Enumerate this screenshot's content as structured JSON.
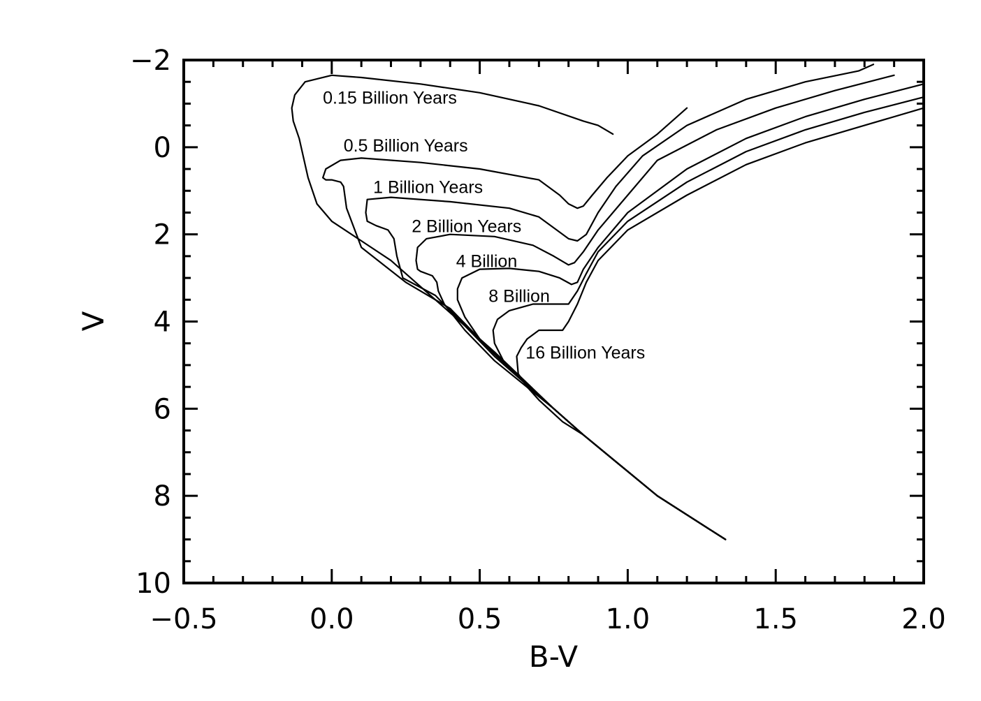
{
  "chart_data": {
    "type": "line",
    "xlabel": "B-V",
    "ylabel": "V",
    "xlim": [
      -0.5,
      2.0
    ],
    "ylim": [
      10,
      -2
    ],
    "y_inverted": true,
    "xticks": [
      "−0.5",
      "0.0",
      "0.5",
      "1.0",
      "1.5",
      "2.0"
    ],
    "yticks": [
      "−2",
      "0",
      "2",
      "4",
      "6",
      "8",
      "10"
    ],
    "grid": false,
    "series": [
      {
        "name": "0.15 Billion Years",
        "label_at": [
          -0.03,
          -1.0
        ],
        "x": [
          1.33,
          1.1,
          0.85,
          0.75,
          0.55,
          0.35,
          0.2,
          0.1,
          0.0,
          -0.05,
          -0.08,
          -0.11,
          -0.13,
          -0.135,
          -0.125,
          -0.09,
          0.0,
          0.1,
          0.3,
          0.5,
          0.7,
          0.85,
          0.9,
          0.95
        ],
        "y": [
          9.0,
          8.0,
          6.6,
          6.0,
          4.7,
          3.5,
          2.6,
          2.15,
          1.7,
          1.3,
          0.7,
          -0.2,
          -0.6,
          -0.9,
          -1.2,
          -1.5,
          -1.65,
          -1.6,
          -1.45,
          -1.25,
          -0.95,
          -0.6,
          -0.5,
          -0.3
        ]
      },
      {
        "name": "0.5 Billion Years",
        "label_at": [
          0.04,
          0.1
        ],
        "x": [
          1.33,
          1.1,
          0.85,
          0.75,
          0.55,
          0.4,
          0.25,
          0.1,
          0.05,
          0.04,
          0.03,
          0.0,
          -0.02,
          -0.03,
          -0.02,
          0.03,
          0.1,
          0.3,
          0.5,
          0.7,
          0.77,
          0.8,
          0.83,
          0.85,
          0.88,
          0.93,
          1.0,
          1.1,
          1.2
        ],
        "y": [
          9.0,
          8.0,
          6.6,
          6.0,
          4.75,
          3.7,
          3.1,
          2.3,
          1.4,
          0.9,
          0.8,
          0.75,
          0.75,
          0.7,
          0.5,
          0.3,
          0.25,
          0.35,
          0.5,
          0.75,
          1.1,
          1.3,
          1.4,
          1.35,
          1.1,
          0.7,
          0.2,
          -0.3,
          -0.9
        ]
      },
      {
        "name": "1 Billion Years",
        "label_at": [
          0.14,
          1.05
        ],
        "x": [
          1.33,
          1.1,
          0.85,
          0.75,
          0.55,
          0.45,
          0.35,
          0.24,
          0.22,
          0.21,
          0.19,
          0.15,
          0.12,
          0.115,
          0.12,
          0.2,
          0.4,
          0.6,
          0.7,
          0.76,
          0.8,
          0.83,
          0.86,
          0.9,
          0.96,
          1.05,
          1.2,
          1.4,
          1.6,
          1.78,
          1.83
        ],
        "y": [
          9.0,
          8.0,
          6.6,
          6.0,
          4.8,
          4.1,
          3.4,
          3.0,
          2.5,
          2.1,
          1.9,
          1.8,
          1.7,
          1.5,
          1.2,
          1.15,
          1.25,
          1.4,
          1.6,
          1.9,
          2.1,
          2.15,
          2.0,
          1.5,
          0.9,
          0.2,
          -0.5,
          -1.1,
          -1.5,
          -1.75,
          -1.9
        ]
      },
      {
        "name": "2 Billion Years",
        "label_at": [
          0.27,
          1.95
        ],
        "x": [
          1.33,
          1.1,
          0.85,
          0.75,
          0.55,
          0.45,
          0.38,
          0.36,
          0.355,
          0.34,
          0.3,
          0.29,
          0.285,
          0.29,
          0.32,
          0.4,
          0.55,
          0.68,
          0.75,
          0.8,
          0.82,
          0.85,
          0.9,
          1.0,
          1.1,
          1.3,
          1.5,
          1.7,
          1.9
        ],
        "y": [
          9.0,
          8.0,
          6.6,
          6.0,
          4.9,
          4.2,
          3.6,
          3.3,
          3.1,
          2.95,
          2.85,
          2.8,
          2.6,
          2.3,
          2.1,
          2.0,
          2.05,
          2.25,
          2.5,
          2.7,
          2.65,
          2.4,
          1.9,
          1.1,
          0.3,
          -0.4,
          -0.9,
          -1.3,
          -1.65
        ]
      },
      {
        "name": "4 Billion",
        "label_at": [
          0.42,
          2.75
        ],
        "x": [
          1.33,
          1.1,
          0.85,
          0.75,
          0.62,
          0.5,
          0.45,
          0.425,
          0.425,
          0.44,
          0.5,
          0.6,
          0.7,
          0.77,
          0.81,
          0.83,
          0.85,
          0.9,
          1.0,
          1.2,
          1.4,
          1.6,
          1.8,
          2.0
        ],
        "y": [
          9.0,
          8.0,
          6.6,
          6.0,
          5.2,
          4.4,
          3.9,
          3.5,
          3.25,
          3.0,
          2.8,
          2.78,
          2.85,
          3.0,
          3.15,
          3.1,
          2.8,
          2.3,
          1.5,
          0.5,
          -0.2,
          -0.7,
          -1.1,
          -1.45
        ]
      },
      {
        "name": "8 Billion",
        "label_at": [
          0.53,
          3.55
        ],
        "x": [
          1.33,
          1.1,
          0.85,
          0.75,
          0.65,
          0.58,
          0.55,
          0.545,
          0.56,
          0.6,
          0.68,
          0.75,
          0.8,
          0.83,
          0.86,
          0.9,
          1.0,
          1.2,
          1.4,
          1.6,
          1.8,
          2.0
        ],
        "y": [
          9.0,
          8.0,
          6.6,
          6.0,
          5.4,
          4.9,
          4.5,
          4.2,
          3.95,
          3.75,
          3.6,
          3.6,
          3.6,
          3.3,
          2.9,
          2.4,
          1.7,
          0.8,
          0.1,
          -0.4,
          -0.8,
          -1.15
        ]
      },
      {
        "name": "16 Billion Years",
        "label_at": [
          0.655,
          4.85
        ],
        "x": [
          1.33,
          1.1,
          0.85,
          0.78,
          0.7,
          0.66,
          0.63,
          0.625,
          0.64,
          0.66,
          0.7,
          0.75,
          0.78,
          0.8,
          0.83,
          0.86,
          0.9,
          1.0,
          1.2,
          1.4,
          1.6,
          1.8,
          2.0
        ],
        "y": [
          9.0,
          8.0,
          6.6,
          6.3,
          5.8,
          5.5,
          5.2,
          4.8,
          4.6,
          4.4,
          4.2,
          4.2,
          4.2,
          4.0,
          3.6,
          3.1,
          2.6,
          1.9,
          1.1,
          0.4,
          -0.1,
          -0.5,
          -0.9
        ]
      }
    ]
  }
}
